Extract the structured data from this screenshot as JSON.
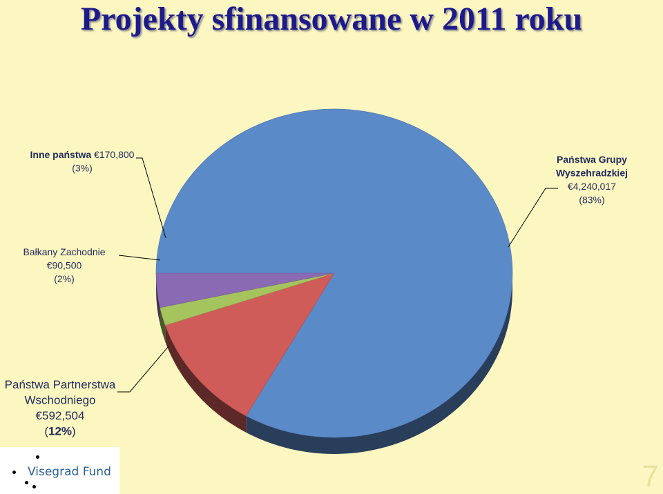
{
  "title": "Projekty sfinansowane w 2011 roku",
  "chart_data": {
    "type": "pie",
    "title": "Projekty sfinansowane w 2011 roku",
    "currency": "€",
    "slices": [
      {
        "label_lines": [
          "Państwa Grupy",
          "Wyszehradzkiej"
        ],
        "value_text": "4,240,017",
        "value": 4240017,
        "percent_text": "(83%)",
        "percent": 83,
        "color": "#5b8ac9"
      },
      {
        "label_lines": [
          "Państwa Partnerstwa",
          "Wschodniego"
        ],
        "value_text": "592,504",
        "value": 592504,
        "percent_text": "(12%)",
        "percent": 12,
        "color": "#cf5c58"
      },
      {
        "label_lines": [
          "Bałkany Zachodnie"
        ],
        "value_text": "90,500",
        "value": 90500,
        "percent_text": "(2%)",
        "percent": 2,
        "color": "#a5c45e"
      },
      {
        "label_lines": [
          "Inne państwa"
        ],
        "value_text": "170,800",
        "value": 170800,
        "percent_text": "(3%)",
        "percent": 3,
        "color": "#8a6bb3"
      }
    ]
  },
  "logo": {
    "text": "Visegrad Fund"
  },
  "page_number": "7"
}
